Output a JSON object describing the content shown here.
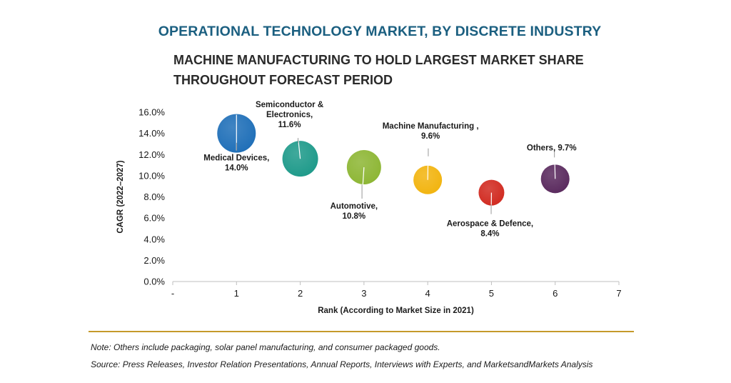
{
  "header": {
    "title": "OPERATIONAL TECHNOLOGY MARKET, BY DISCRETE INDUSTRY",
    "subtitle": "MACHINE MANUFACTURING TO HOLD LARGEST MARKET SHARE THROUGHOUT FORECAST PERIOD"
  },
  "footer": {
    "note": "Note: Others include packaging, solar panel manufacturing, and consumer packaged goods.",
    "source": "Source: Press Releases, Investor Relation Presentations, Annual Reports, Interviews with Experts, and MarketsandMarkets Analysis"
  },
  "chart_data": {
    "type": "scatter",
    "xlabel": "Rank (According to Market Size in 2021)",
    "ylabel": "CAGR (2022–2027)",
    "x_ticks": [
      "-",
      "1",
      "2",
      "3",
      "4",
      "5",
      "6",
      "7"
    ],
    "xlim": [
      0,
      7
    ],
    "ylim": [
      0,
      16
    ],
    "y_ticks": [
      "0.0%",
      "2.0%",
      "4.0%",
      "6.0%",
      "8.0%",
      "10.0%",
      "12.0%",
      "14.0%",
      "16.0%"
    ],
    "grid": false,
    "points": [
      {
        "label_lines": [
          "Medical Devices,",
          "14.0%"
        ],
        "x": 1,
        "y": 14.0,
        "color": "#1f6fb8"
      },
      {
        "label_lines": [
          "Semiconductor &",
          "Electronics,",
          "11.6%"
        ],
        "x": 2,
        "y": 11.6,
        "color": "#1e9a8a"
      },
      {
        "label_lines": [
          "Automotive,",
          "10.8%"
        ],
        "x": 3,
        "y": 10.8,
        "color": "#8db634"
      },
      {
        "label_lines": [
          "Machine Manufacturing ,",
          "9.6%"
        ],
        "x": 4,
        "y": 9.6,
        "color": "#f2b40f"
      },
      {
        "label_lines": [
          "Aerospace & Defence,",
          "8.4%"
        ],
        "x": 5,
        "y": 8.4,
        "color": "#d12a20"
      },
      {
        "label_lines": [
          "Others, 9.7%"
        ],
        "x": 6,
        "y": 9.7,
        "color": "#5a2a5e"
      }
    ]
  }
}
